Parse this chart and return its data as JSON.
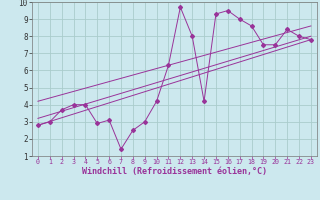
{
  "bg_color": "#cce8ee",
  "line_color": "#993399",
  "grid_color": "#aacccc",
  "xlabel": "Windchill (Refroidissement éolien,°C)",
  "xlim": [
    -0.5,
    23.5
  ],
  "ylim": [
    1,
    10
  ],
  "yticks": [
    1,
    2,
    3,
    4,
    5,
    6,
    7,
    8,
    9,
    10
  ],
  "xticks": [
    0,
    1,
    2,
    3,
    4,
    5,
    6,
    7,
    8,
    9,
    10,
    11,
    12,
    13,
    14,
    15,
    16,
    17,
    18,
    19,
    20,
    21,
    22,
    23
  ],
  "series1_x": [
    0,
    1,
    2,
    3,
    4,
    5,
    6,
    7,
    8,
    9,
    10,
    11,
    12,
    13,
    14,
    15,
    16,
    17,
    18,
    19,
    20,
    21,
    22,
    23
  ],
  "series1_y": [
    2.8,
    3.0,
    3.7,
    4.0,
    4.0,
    2.9,
    3.1,
    1.4,
    2.5,
    3.0,
    4.2,
    6.3,
    9.7,
    8.0,
    4.2,
    9.3,
    9.5,
    9.0,
    8.6,
    7.5,
    7.5,
    8.4,
    8.0,
    7.8
  ],
  "line2_x": [
    0,
    23
  ],
  "line2_y": [
    2.8,
    7.8
  ],
  "line3_x": [
    0,
    23
  ],
  "line3_y": [
    3.2,
    8.0
  ],
  "line4_x": [
    0,
    23
  ],
  "line4_y": [
    4.2,
    8.6
  ]
}
